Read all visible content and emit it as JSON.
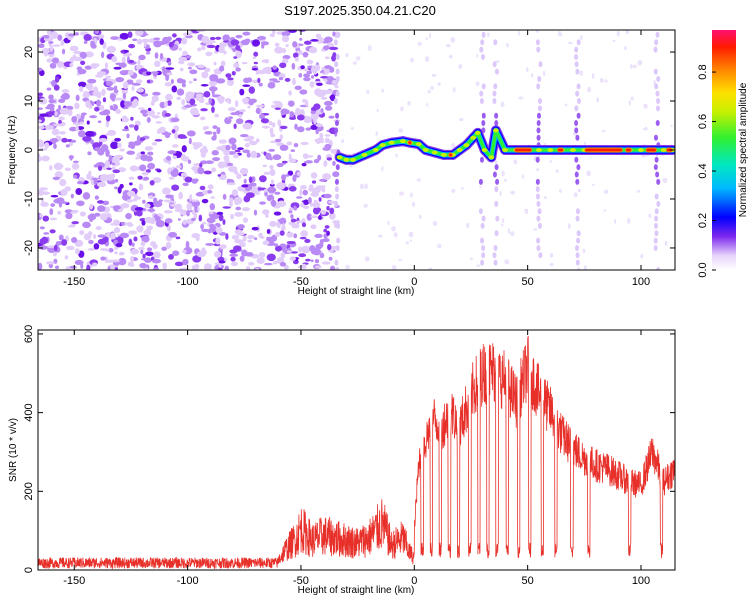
{
  "title": "S197.2025.350.04.21.C20",
  "chart_data": [
    {
      "type": "heatmap",
      "xlabel": "Height of straight line (km)",
      "ylabel": "Frequency (Hz)",
      "xlim": [
        -166,
        115
      ],
      "ylim": [
        -24.5,
        24.5
      ],
      "x_ticks": [
        -150,
        -100,
        -50,
        0,
        50,
        100
      ],
      "y_ticks": [
        -20,
        -10,
        0,
        10,
        20
      ],
      "colorbar": {
        "label": "Normalized spectral amplitude",
        "range": [
          0,
          0.97
        ],
        "ticks": [
          "0.0",
          "0.2",
          "0.4",
          "0.6",
          "0.8"
        ],
        "tick_values": [
          0,
          0.2,
          0.4,
          0.6,
          0.8
        ]
      },
      "noise_region": {
        "x_range": [
          -166,
          -34
        ],
        "level": 0.05
      },
      "ridge": [
        {
          "x": -33,
          "f": -1.5
        },
        {
          "x": -30,
          "f": -2
        },
        {
          "x": -27,
          "f": -2
        },
        {
          "x": -22,
          "f": -1
        },
        {
          "x": -17,
          "f": 0
        },
        {
          "x": -14,
          "f": 1
        },
        {
          "x": -10,
          "f": 1.5
        },
        {
          "x": -5,
          "f": 1.8
        },
        {
          "x": -2,
          "f": 1.5
        },
        {
          "x": 2,
          "f": 1.2
        },
        {
          "x": 5,
          "f": 0
        },
        {
          "x": 9,
          "f": -0.5
        },
        {
          "x": 13,
          "f": -1
        },
        {
          "x": 17,
          "f": -1
        },
        {
          "x": 20,
          "f": 0
        },
        {
          "x": 23,
          "f": 1
        },
        {
          "x": 26,
          "f": 2.5
        },
        {
          "x": 28,
          "f": 3.5
        },
        {
          "x": 31,
          "f": 0
        },
        {
          "x": 34,
          "f": -1.5
        },
        {
          "x": 36,
          "f": 4
        },
        {
          "x": 40,
          "f": 0
        },
        {
          "x": 45,
          "f": 0
        },
        {
          "x": 50,
          "f": 0
        },
        {
          "x": 55,
          "f": 0
        },
        {
          "x": 60,
          "f": 0
        },
        {
          "x": 65,
          "f": 0
        },
        {
          "x": 70,
          "f": 0
        },
        {
          "x": 75,
          "f": 0
        },
        {
          "x": 80,
          "f": 0
        },
        {
          "x": 85,
          "f": 0
        },
        {
          "x": 90,
          "f": 0
        },
        {
          "x": 95,
          "f": 0
        },
        {
          "x": 100,
          "f": 0
        },
        {
          "x": 105,
          "f": 0
        },
        {
          "x": 110,
          "f": 0
        },
        {
          "x": 114,
          "f": 0
        }
      ],
      "hot_segments": [
        {
          "x0": -3,
          "x1": -1,
          "f": 1.5
        },
        {
          "x0": 15,
          "x1": 17,
          "f": -1
        },
        {
          "x0": 44,
          "x1": 52,
          "f": 0
        },
        {
          "x0": 63,
          "x1": 66,
          "f": 0
        },
        {
          "x0": 75,
          "x1": 92,
          "f": 0
        },
        {
          "x0": 93,
          "x1": 96,
          "f": 0
        },
        {
          "x0": 102,
          "x1": 107,
          "f": 0
        },
        {
          "x0": 111,
          "x1": 114,
          "f": 0
        }
      ],
      "vertical_streaks": [
        -34,
        30,
        36,
        55,
        72,
        107
      ]
    },
    {
      "type": "line",
      "xlabel": "Height of straight line (km)",
      "ylabel": "SNR (10 * v/v)",
      "xlim": [
        -166,
        115
      ],
      "ylim": [
        0,
        610
      ],
      "x_ticks": [
        -150,
        -100,
        -50,
        0,
        50,
        100
      ],
      "y_ticks": [
        0,
        200,
        400,
        600
      ],
      "color": "#e8302a",
      "baseline": {
        "x_range": [
          -166,
          -60
        ],
        "mean": 18,
        "amplitude": 14
      },
      "mid_segment": {
        "x_range": [
          -60,
          0
        ],
        "envelope": [
          {
            "x": -60,
            "y": 40
          },
          {
            "x": -57,
            "y": 80
          },
          {
            "x": -52,
            "y": 130
          },
          {
            "x": -50,
            "y": 170
          },
          {
            "x": -45,
            "y": 120
          },
          {
            "x": -40,
            "y": 140
          },
          {
            "x": -35,
            "y": 130
          },
          {
            "x": -25,
            "y": 110
          },
          {
            "x": -20,
            "y": 130
          },
          {
            "x": -14,
            "y": 190
          },
          {
            "x": -10,
            "y": 100
          },
          {
            "x": -5,
            "y": 130
          },
          {
            "x": -2,
            "y": 70
          },
          {
            "x": 0,
            "y": 50
          }
        ]
      },
      "high_segment": {
        "x_range": [
          0,
          115
        ],
        "envelope": [
          {
            "x": 0,
            "y": 120
          },
          {
            "x": 2,
            "y": 320
          },
          {
            "x": 5,
            "y": 380
          },
          {
            "x": 8,
            "y": 450
          },
          {
            "x": 12,
            "y": 420
          },
          {
            "x": 16,
            "y": 470
          },
          {
            "x": 20,
            "y": 420
          },
          {
            "x": 25,
            "y": 520
          },
          {
            "x": 30,
            "y": 580
          },
          {
            "x": 35,
            "y": 590
          },
          {
            "x": 40,
            "y": 560
          },
          {
            "x": 45,
            "y": 500
          },
          {
            "x": 50,
            "y": 600
          },
          {
            "x": 55,
            "y": 520
          },
          {
            "x": 60,
            "y": 470
          },
          {
            "x": 65,
            "y": 400
          },
          {
            "x": 70,
            "y": 360
          },
          {
            "x": 75,
            "y": 330
          },
          {
            "x": 80,
            "y": 310
          },
          {
            "x": 85,
            "y": 300
          },
          {
            "x": 90,
            "y": 280
          },
          {
            "x": 95,
            "y": 260
          },
          {
            "x": 100,
            "y": 250
          },
          {
            "x": 105,
            "y": 350
          },
          {
            "x": 110,
            "y": 260
          },
          {
            "x": 115,
            "y": 300
          }
        ]
      },
      "dropouts": [
        3.5,
        7.5,
        11.5,
        15.5,
        19.5,
        24.5,
        28.5,
        32.5,
        36.5,
        41,
        46,
        51,
        56.5,
        62.5,
        69.5,
        77,
        95,
        109
      ]
    }
  ]
}
